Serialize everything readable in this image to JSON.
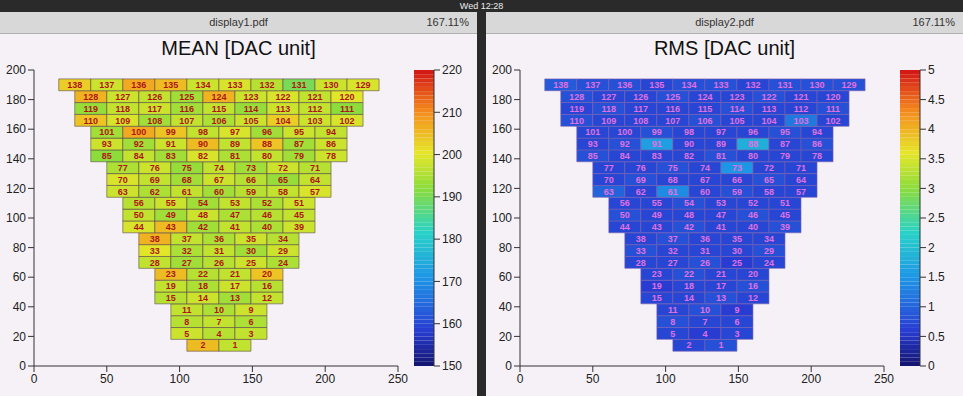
{
  "window": {
    "clock": "Wed 12:28",
    "tabs": [
      {
        "file": "display1.pdf",
        "zoom": "167.11%"
      },
      {
        "file": "display2.pdf",
        "zoom": "167.11%"
      }
    ]
  },
  "chart_data": [
    {
      "type": "heatmap",
      "title": "MEAN [DAC unit]",
      "xlim": [
        0,
        250
      ],
      "xticks": [
        0,
        50,
        100,
        150,
        200,
        250
      ],
      "ylim": [
        0,
        200
      ],
      "yticks": [
        0,
        20,
        40,
        60,
        80,
        100,
        120,
        140,
        160,
        180,
        200
      ],
      "rows": [
        [
          2,
          1
        ],
        [
          5,
          4,
          3
        ],
        [
          8,
          7,
          6
        ],
        [
          11,
          10,
          9
        ],
        [
          15,
          14,
          13,
          12
        ],
        [
          19,
          18,
          17,
          16
        ],
        [
          23,
          22,
          21,
          20
        ],
        [
          28,
          27,
          26,
          25,
          24
        ],
        [
          33,
          32,
          31,
          30,
          29
        ],
        [
          38,
          37,
          36,
          35,
          34
        ],
        [
          44,
          43,
          42,
          41,
          40,
          39
        ],
        [
          50,
          49,
          48,
          47,
          46,
          45
        ],
        [
          56,
          55,
          54,
          53,
          52,
          51
        ],
        [
          63,
          62,
          61,
          60,
          59,
          58,
          57
        ],
        [
          70,
          69,
          68,
          67,
          66,
          65,
          64
        ],
        [
          77,
          76,
          75,
          74,
          73,
          72,
          71
        ],
        [
          85,
          84,
          83,
          82,
          81,
          80,
          79,
          78
        ],
        [
          93,
          92,
          91,
          90,
          89,
          88,
          87,
          86
        ],
        [
          101,
          100,
          99,
          98,
          97,
          96,
          95,
          94
        ],
        [
          110,
          109,
          108,
          107,
          106,
          105,
          104,
          103,
          102
        ],
        [
          119,
          118,
          117,
          116,
          115,
          114,
          113,
          112,
          111
        ],
        [
          128,
          127,
          126,
          125,
          124,
          123,
          122,
          121,
          120
        ],
        [
          138,
          137,
          136,
          135,
          134,
          133,
          132,
          131,
          130,
          129
        ]
      ],
      "values": [
        [
          205,
          197
        ],
        [
          198,
          196,
          197
        ],
        [
          196,
          197,
          195
        ],
        [
          197,
          195,
          198
        ],
        [
          196,
          198,
          194,
          197
        ],
        [
          197,
          195,
          198,
          196
        ],
        [
          205,
          196,
          197,
          204
        ],
        [
          197,
          194,
          196,
          198,
          195
        ],
        [
          200,
          195,
          197,
          194,
          198
        ],
        [
          206,
          197,
          195,
          198,
          196
        ],
        [
          199,
          205,
          194,
          197,
          195,
          198
        ],
        [
          197,
          194,
          198,
          195,
          196,
          197
        ],
        [
          196,
          198,
          194,
          197,
          195,
          198
        ],
        [
          198,
          195,
          197,
          194,
          196,
          197,
          199
        ],
        [
          199,
          197,
          194,
          198,
          196,
          193,
          197
        ],
        [
          195,
          198,
          193,
          197,
          194,
          198,
          196
        ],
        [
          192,
          197,
          194,
          199,
          195,
          197,
          194,
          198
        ],
        [
          198,
          194,
          198,
          205,
          197,
          204,
          194,
          198
        ],
        [
          194,
          207,
          204,
          197,
          199,
          194,
          198,
          197
        ],
        [
          204,
          199,
          194,
          197,
          195,
          198,
          203,
          198,
          199
        ],
        [
          193,
          197,
          198,
          194,
          197,
          193,
          198,
          197,
          192
        ],
        [
          206,
          198,
          197,
          194,
          206,
          198,
          199,
          197,
          200
        ],
        [
          203,
          198,
          207,
          205,
          198,
          199,
          196,
          190,
          198,
          199
        ]
      ],
      "colorbar_range": [
        150,
        220
      ],
      "colorbar_ticks": [
        150,
        160,
        170,
        180,
        190,
        200,
        210,
        220
      ]
    },
    {
      "type": "heatmap",
      "title": "RMS [DAC unit]",
      "xlim": [
        0,
        250
      ],
      "xticks": [
        0,
        50,
        100,
        150,
        200,
        250
      ],
      "ylim": [
        0,
        200
      ],
      "yticks": [
        0,
        20,
        40,
        60,
        80,
        100,
        120,
        140,
        160,
        180,
        200
      ],
      "rows": [
        [
          2,
          1
        ],
        [
          5,
          4,
          3
        ],
        [
          8,
          7,
          6
        ],
        [
          11,
          10,
          9
        ],
        [
          15,
          14,
          13,
          12
        ],
        [
          19,
          18,
          17,
          16
        ],
        [
          23,
          22,
          21,
          20
        ],
        [
          28,
          27,
          26,
          25,
          24
        ],
        [
          33,
          32,
          31,
          30,
          29
        ],
        [
          38,
          37,
          36,
          35,
          34
        ],
        [
          44,
          43,
          42,
          41,
          40,
          39
        ],
        [
          50,
          49,
          48,
          47,
          46,
          45
        ],
        [
          56,
          55,
          54,
          53,
          52,
          51
        ],
        [
          63,
          62,
          61,
          60,
          59,
          58,
          57
        ],
        [
          70,
          69,
          68,
          67,
          66,
          65,
          64
        ],
        [
          77,
          76,
          75,
          74,
          73,
          72,
          71
        ],
        [
          85,
          84,
          83,
          82,
          81,
          80,
          79,
          78
        ],
        [
          93,
          92,
          91,
          90,
          89,
          88,
          87,
          86
        ],
        [
          101,
          100,
          99,
          98,
          97,
          96,
          95,
          94
        ],
        [
          110,
          109,
          108,
          107,
          106,
          105,
          104,
          103,
          102
        ],
        [
          119,
          118,
          117,
          116,
          115,
          114,
          113,
          112,
          111
        ],
        [
          128,
          127,
          126,
          125,
          124,
          123,
          122,
          121,
          120
        ],
        [
          138,
          137,
          136,
          135,
          134,
          133,
          132,
          131,
          130,
          129
        ]
      ],
      "values": [
        [
          0.7,
          0.8
        ],
        [
          0.7,
          0.6,
          0.7
        ],
        [
          0.8,
          0.7,
          0.7
        ],
        [
          0.7,
          0.8,
          0.6
        ],
        [
          0.7,
          0.7,
          0.8,
          0.7
        ],
        [
          0.6,
          0.7,
          0.7,
          0.8
        ],
        [
          0.7,
          0.8,
          0.7,
          0.7
        ],
        [
          0.7,
          0.7,
          0.8,
          0.6,
          0.7
        ],
        [
          0.8,
          0.7,
          0.7,
          0.7,
          0.8
        ],
        [
          0.7,
          0.8,
          0.7,
          0.7,
          0.7
        ],
        [
          0.7,
          0.7,
          0.8,
          0.7,
          0.7,
          0.8
        ],
        [
          0.8,
          0.7,
          0.7,
          0.7,
          0.8,
          0.7
        ],
        [
          0.7,
          0.7,
          0.8,
          0.7,
          0.7,
          0.7
        ],
        [
          1.0,
          0.7,
          1.4,
          0.7,
          0.8,
          0.7,
          0.7
        ],
        [
          0.7,
          0.8,
          0.7,
          0.7,
          0.7,
          0.8,
          0.7
        ],
        [
          0.7,
          0.7,
          0.8,
          0.7,
          1.5,
          0.7,
          0.7
        ],
        [
          0.8,
          0.7,
          0.7,
          0.7,
          0.8,
          0.7,
          0.7,
          0.7
        ],
        [
          0.7,
          0.8,
          1.6,
          0.7,
          0.7,
          1.8,
          0.7,
          0.8
        ],
        [
          0.7,
          0.7,
          0.8,
          0.7,
          0.7,
          0.7,
          0.8,
          0.7
        ],
        [
          0.8,
          0.7,
          0.7,
          0.7,
          0.8,
          0.7,
          0.7,
          1.2,
          0.7
        ],
        [
          0.7,
          0.8,
          0.7,
          0.7,
          0.7,
          0.8,
          0.7,
          0.7,
          0.8
        ],
        [
          0.8,
          0.7,
          0.7,
          0.8,
          0.7,
          0.7,
          0.8,
          0.7,
          0.7
        ],
        [
          0.9,
          0.8,
          0.8,
          0.7,
          0.8,
          0.8,
          0.7,
          0.8,
          0.8,
          0.8
        ]
      ],
      "colorbar_range": [
        0,
        5
      ],
      "colorbar_ticks": [
        0,
        0.5,
        1,
        1.5,
        2,
        2.5,
        3,
        3.5,
        4,
        4.5,
        5
      ]
    }
  ]
}
